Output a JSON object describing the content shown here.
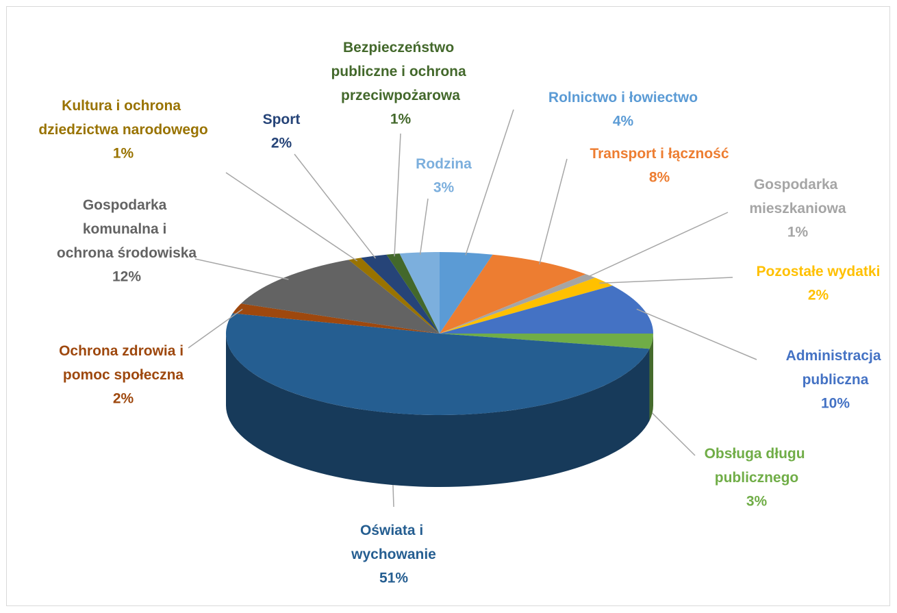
{
  "chart_data": {
    "type": "pie3d",
    "categories": [
      "Rolnictwo i łowiectwo",
      "Transport i łączność",
      "Gospodarka mieszkaniowa",
      "Pozostałe wydatki",
      "Administracja publiczna",
      "Obsługa długu publicznego",
      "Oświata i wychowanie",
      "Ochrona zdrowia i pomoc społeczna",
      "Gospodarka komunalna i ochrona środowiska",
      "Kultura i ochrona dziedzictwa narodowego",
      "Sport",
      "Bezpieczeństwo publiczne i ochrona przeciwpożarowa",
      "Rodzina"
    ],
    "values": [
      4,
      8,
      1,
      2,
      10,
      3,
      51,
      2,
      12,
      1,
      2,
      1,
      3
    ],
    "value_labels": [
      "4%",
      "8%",
      "1%",
      "2%",
      "10%",
      "3%",
      "51%",
      "2%",
      "12%",
      "1%",
      "2%",
      "1%",
      "3%"
    ],
    "colors": [
      "#5b9bd5",
      "#ed7d31",
      "#a5a5a5",
      "#ffc000",
      "#4472c4",
      "#70ad47",
      "#255e91",
      "#9e480e",
      "#636363",
      "#997300",
      "#264478",
      "#43682b",
      "#7cafdd"
    ]
  }
}
